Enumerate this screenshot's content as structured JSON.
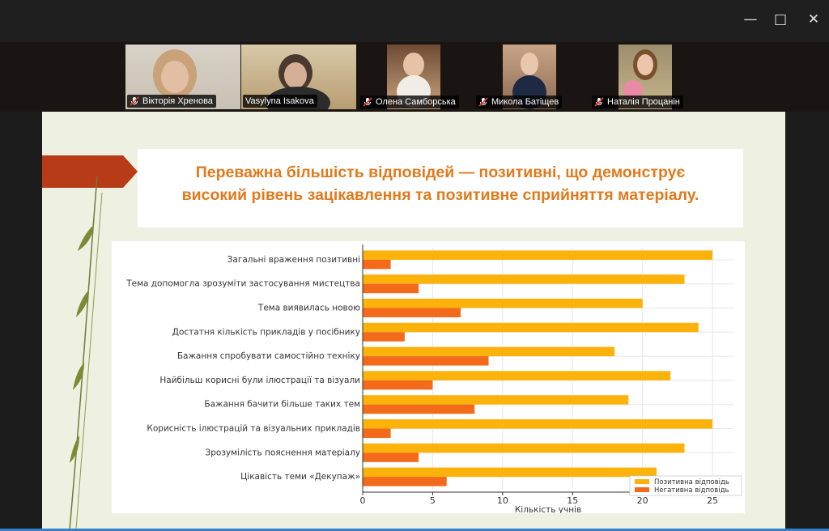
{
  "window": {
    "minimize_glyph": "—",
    "maximize_glyph": "□",
    "close_glyph": "✕"
  },
  "participants": [
    {
      "name": "Вікторія Хренова",
      "muted": true,
      "active": false
    },
    {
      "name": "Vasylyna Isakova",
      "muted": false,
      "active": true
    },
    {
      "name": "Олена Самборська",
      "muted": true,
      "active": false
    },
    {
      "name": "Микола Батіщев",
      "muted": true,
      "active": false
    },
    {
      "name": "Наталія Процанін",
      "muted": true,
      "active": false
    }
  ],
  "slide": {
    "title_line1": "Переважна більшість відповідей — позитивні, що демонструє",
    "title_line2": "високий рівень зацікавлення та позитивне сприйняття матеріалу."
  },
  "colors": {
    "positive": "#fbb20a",
    "negative": "#f46a1b",
    "title": "#e07a1c",
    "arrow": "#b73b17",
    "active_speaker": "#2fd36b"
  },
  "chart_data": {
    "type": "bar",
    "orientation": "horizontal",
    "categories": [
      "Загальні враження позитивні",
      "Тема допомогла зрозуміти застосування мистецтва",
      "Тема виявилась новою",
      "Достатня кількість прикладів у посібнику",
      "Бажання спробувати самостійно техніку",
      "Найбільш корисні були ілюстрації та візуали",
      "Бажання бачити більше таких тем",
      "Корисність ілюстрацій та візуальних прикладів",
      "Зрозумілість пояснення матеріалу",
      "Цікавість теми «Декупаж»"
    ],
    "series": [
      {
        "name": "Позитивна відповідь",
        "values": [
          25,
          23,
          20,
          24,
          18,
          22,
          19,
          25,
          23,
          21
        ]
      },
      {
        "name": "Негативна відповідь",
        "values": [
          2,
          4,
          7,
          3,
          9,
          5,
          8,
          2,
          4,
          6
        ]
      }
    ],
    "xlabel": "Кількість учнів",
    "ylabel": "",
    "xlim": [
      0,
      26.5
    ],
    "xticks": [
      0,
      5,
      10,
      15,
      20,
      25
    ],
    "grid": true,
    "legend": "bottom-right"
  }
}
